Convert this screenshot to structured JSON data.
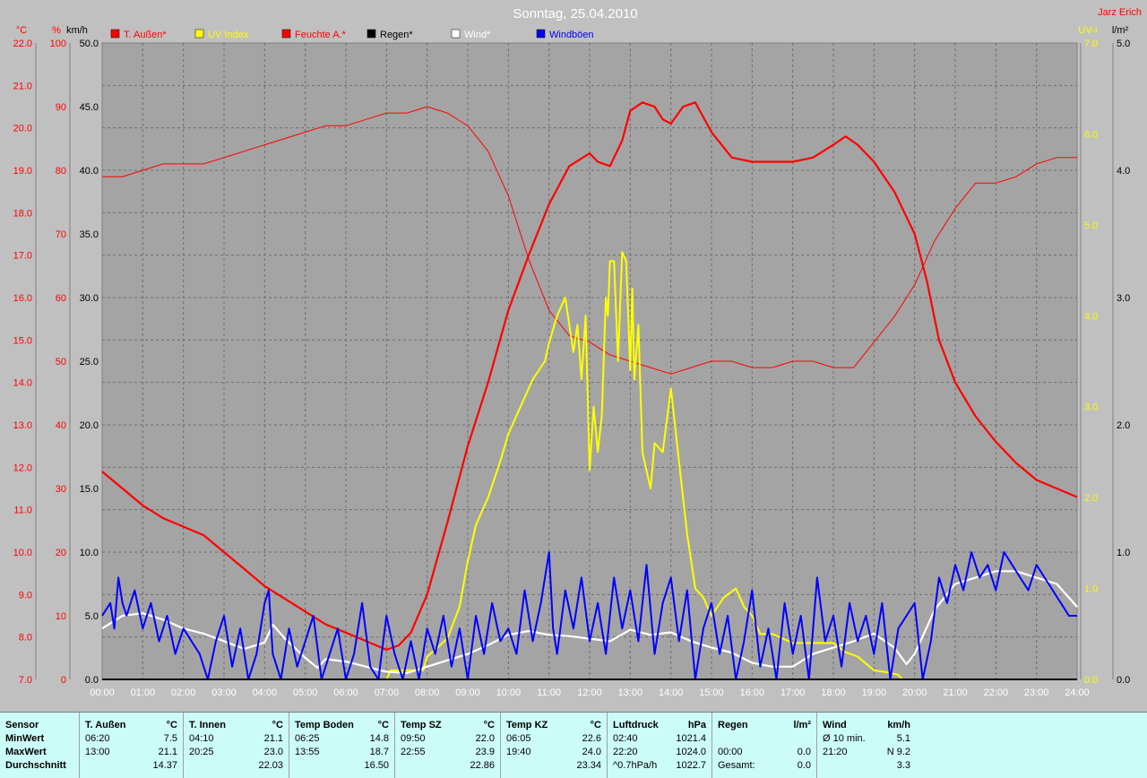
{
  "header": {
    "title": "Sonntag, 25.04.2010",
    "author": "Jarz Erich",
    "axis_units": {
      "temp": "°C",
      "humidity": "%",
      "wind": "km/h",
      "uv": "UV-I",
      "rain": "l/m²"
    }
  },
  "legend": [
    {
      "label": "T. Außen*",
      "color": "#ff0000"
    },
    {
      "label": "UV Index",
      "color": "#ffff00"
    },
    {
      "label": "Feuchte A.*",
      "color": "#ff0000"
    },
    {
      "label": "Regen*",
      "color": "#000000"
    },
    {
      "label": "Wind*",
      "color": "#ffffff"
    },
    {
      "label": "Windböen",
      "color": "#0000ff"
    }
  ],
  "chart_data": {
    "type": "line",
    "x_ticks": [
      "00:00",
      "01:00",
      "02:00",
      "03:00",
      "04:00",
      "05:00",
      "06:00",
      "07:00",
      "08:00",
      "09:00",
      "10:00",
      "11:00",
      "12:00",
      "13:00",
      "14:00",
      "15:00",
      "16:00",
      "17:00",
      "18:00",
      "19:00",
      "20:00",
      "21:00",
      "22:00",
      "23:00",
      "24:00"
    ],
    "axes": {
      "temp": {
        "range": [
          7,
          22
        ],
        "ticks": [
          "7.0",
          "8.0",
          "9.0",
          "10.0",
          "11.0",
          "12.0",
          "13.0",
          "14.0",
          "15.0",
          "16.0",
          "17.0",
          "18.0",
          "19.0",
          "20.0",
          "21.0",
          "22.0"
        ]
      },
      "humidity": {
        "range": [
          0,
          100
        ],
        "ticks": [
          "0",
          "10",
          "20",
          "30",
          "40",
          "50",
          "60",
          "70",
          "80",
          "90",
          "100"
        ]
      },
      "wind": {
        "range": [
          0,
          50
        ],
        "ticks": [
          "0.0",
          "5.0",
          "10.0",
          "15.0",
          "20.0",
          "25.0",
          "30.0",
          "35.0",
          "40.0",
          "45.0",
          "50.0"
        ]
      },
      "uv": {
        "range": [
          0,
          7
        ],
        "ticks": [
          "0.0",
          "1.0",
          "2.0",
          "3.0",
          "4.0",
          "5.0",
          "6.0",
          "7.0"
        ]
      },
      "rain": {
        "range": [
          0,
          5
        ],
        "ticks": [
          "0.0",
          "1.0",
          "2.0",
          "3.0",
          "4.0",
          "5.0"
        ]
      }
    },
    "series": [
      {
        "name": "T. Außen*",
        "axis": "temp",
        "color": "#ff0000",
        "width": 2.2,
        "x": [
          0,
          0.5,
          1,
          1.5,
          2,
          2.5,
          3,
          3.5,
          4,
          4.5,
          5,
          5.5,
          6,
          6.5,
          7,
          7.3,
          7.6,
          8,
          8.5,
          9,
          9.5,
          10,
          10.5,
          11,
          11.5,
          12,
          12.2,
          12.5,
          12.8,
          13,
          13.3,
          13.6,
          13.8,
          14,
          14.3,
          14.6,
          15,
          15.5,
          16,
          16.5,
          17,
          17.5,
          18,
          18.3,
          18.6,
          19,
          19.5,
          20,
          20.3,
          20.6,
          21,
          21.5,
          22,
          22.5,
          23,
          23.5,
          24
        ],
        "y": [
          11.9,
          11.5,
          11.1,
          10.8,
          10.6,
          10.4,
          10.0,
          9.6,
          9.2,
          8.9,
          8.6,
          8.3,
          8.1,
          7.9,
          7.7,
          7.8,
          8.1,
          9.0,
          10.7,
          12.5,
          14.0,
          15.7,
          17.0,
          18.2,
          19.1,
          19.4,
          19.2,
          19.1,
          19.7,
          20.4,
          20.6,
          20.5,
          20.2,
          20.1,
          20.5,
          20.6,
          19.9,
          19.3,
          19.2,
          19.2,
          19.2,
          19.3,
          19.6,
          19.8,
          19.6,
          19.2,
          18.5,
          17.5,
          16.4,
          15.0,
          14.0,
          13.2,
          12.6,
          12.1,
          11.7,
          11.5,
          11.3
        ]
      },
      {
        "name": "Feuchte A.*",
        "axis": "humidity",
        "color": "#ff0000",
        "width": 1,
        "x": [
          0,
          0.5,
          1,
          1.5,
          2,
          2.5,
          3,
          3.5,
          4,
          4.5,
          5,
          5.5,
          6,
          6.5,
          7,
          7.5,
          8,
          8.5,
          9,
          9.5,
          10,
          10.5,
          11,
          11.5,
          12,
          12.5,
          13,
          13.5,
          14,
          14.5,
          15,
          15.5,
          16,
          16.5,
          17,
          17.5,
          18,
          18.5,
          19,
          19.5,
          20,
          20.5,
          21,
          21.5,
          22,
          22.5,
          23,
          23.5,
          24
        ],
        "y": [
          79,
          79,
          80,
          81,
          81,
          81,
          82,
          83,
          84,
          85,
          86,
          87,
          87,
          88,
          89,
          89,
          90,
          89,
          87,
          83,
          76,
          66,
          58,
          54,
          53,
          51,
          50,
          49,
          48,
          49,
          50,
          50,
          49,
          49,
          50,
          50,
          49,
          49,
          53,
          57,
          62,
          69,
          74,
          78,
          78,
          79,
          81,
          82,
          82
        ]
      },
      {
        "name": "UV Index",
        "axis": "uv",
        "color": "#ffff00",
        "width": 2,
        "x": [
          0,
          7,
          7.1,
          7.5,
          7.9,
          8,
          8.5,
          8.8,
          9,
          9.2,
          9.5,
          9.8,
          10,
          10.3,
          10.6,
          10.9,
          11,
          11.2,
          11.4,
          11.6,
          11.7,
          11.8,
          11.9,
          12.0,
          12.1,
          12.2,
          12.3,
          12.4,
          12.45,
          12.5,
          12.6,
          12.7,
          12.8,
          12.9,
          13.0,
          13.05,
          13.1,
          13.2,
          13.3,
          13.5,
          13.6,
          13.8,
          14.0,
          14.2,
          14.4,
          14.6,
          14.8,
          15.0,
          15.3,
          15.6,
          15.8,
          16.0,
          16.2,
          16.5,
          17.0,
          17.5,
          18.0,
          18.3,
          18.6,
          19.0,
          19.3,
          19.5,
          19.6,
          19.7,
          24
        ],
        "y": [
          0.0,
          0.0,
          0.1,
          0.1,
          0.1,
          0.25,
          0.45,
          0.8,
          1.3,
          1.7,
          2.0,
          2.4,
          2.7,
          3.0,
          3.3,
          3.5,
          3.7,
          4.0,
          4.2,
          3.6,
          3.9,
          3.3,
          4.0,
          2.3,
          3.0,
          2.5,
          2.9,
          4.2,
          4.0,
          4.6,
          4.6,
          3.5,
          4.7,
          4.6,
          3.4,
          4.3,
          3.3,
          3.9,
          2.5,
          2.1,
          2.6,
          2.5,
          3.2,
          2.4,
          1.6,
          1.0,
          0.9,
          0.7,
          0.9,
          1.0,
          0.8,
          0.7,
          0.5,
          0.5,
          0.4,
          0.4,
          0.4,
          0.3,
          0.25,
          0.1,
          0.08,
          0.06,
          0.05,
          0.0,
          0.0
        ]
      },
      {
        "name": "Wind*",
        "axis": "wind",
        "color": "#ffffff",
        "width": 2.2,
        "x": [
          0,
          0.5,
          1,
          1.5,
          2,
          2.5,
          3,
          3.5,
          4,
          4.2,
          4.5,
          5,
          5.3,
          5.5,
          6,
          6.5,
          7,
          7.5,
          8,
          8.5,
          9,
          9.5,
          10,
          10.5,
          11,
          11.5,
          12,
          12.5,
          13,
          13.5,
          14,
          14.5,
          15,
          15.5,
          16,
          16.5,
          17,
          17.5,
          18,
          18.5,
          19,
          19.5,
          19.8,
          20,
          20.5,
          21,
          21.5,
          22,
          22.5,
          23,
          23.5,
          24
        ],
        "y": [
          4.0,
          5.0,
          5.2,
          4.7,
          4.0,
          3.6,
          3.0,
          2.4,
          2.9,
          4.3,
          3.2,
          1.7,
          0.9,
          1.6,
          1.4,
          1.0,
          0.6,
          0.5,
          1.0,
          1.5,
          2.0,
          2.7,
          3.5,
          3.8,
          3.5,
          3.4,
          3.2,
          3.0,
          3.9,
          3.5,
          3.7,
          3.0,
          2.5,
          2.1,
          1.3,
          1.0,
          1.0,
          2.0,
          2.5,
          3.0,
          3.6,
          2.5,
          1.2,
          2.0,
          5.5,
          7.5,
          8.0,
          8.5,
          8.5,
          8.0,
          7.5,
          5.7
        ]
      },
      {
        "name": "Windböen",
        "axis": "wind",
        "color": "#0000ff",
        "width": 2,
        "x": [
          0,
          0.2,
          0.3,
          0.4,
          0.5,
          0.6,
          0.8,
          1,
          1.2,
          1.4,
          1.6,
          1.8,
          2,
          2.2,
          2.4,
          2.6,
          2.8,
          3,
          3.2,
          3.4,
          3.6,
          3.8,
          4,
          4.1,
          4.2,
          4.4,
          4.6,
          4.8,
          5,
          5.2,
          5.4,
          5.6,
          5.8,
          6,
          6.2,
          6.4,
          6.6,
          6.8,
          7,
          7.2,
          7.4,
          7.6,
          7.8,
          8,
          8.2,
          8.4,
          8.6,
          8.8,
          9,
          9.2,
          9.4,
          9.6,
          9.8,
          10,
          10.2,
          10.4,
          10.6,
          10.8,
          11,
          11.1,
          11.2,
          11.4,
          11.6,
          11.8,
          12,
          12.2,
          12.4,
          12.6,
          12.8,
          13,
          13.2,
          13.4,
          13.6,
          13.8,
          14,
          14.2,
          14.4,
          14.6,
          14.8,
          15,
          15.2,
          15.4,
          15.6,
          15.8,
          16,
          16.2,
          16.4,
          16.6,
          16.8,
          17,
          17.2,
          17.4,
          17.6,
          17.8,
          18,
          18.2,
          18.4,
          18.6,
          18.8,
          19,
          19.2,
          19.4,
          19.6,
          19.8,
          20,
          20.2,
          20.4,
          20.6,
          20.8,
          21,
          21.2,
          21.4,
          21.6,
          21.8,
          22,
          22.2,
          22.4,
          22.6,
          22.8,
          23,
          23.2,
          23.4,
          23.6,
          23.8,
          24
        ],
        "y": [
          5,
          6,
          4,
          8,
          6,
          5,
          7,
          4,
          6,
          3,
          5,
          2,
          4,
          3,
          2,
          0,
          3,
          5,
          1,
          4,
          0,
          2,
          6,
          7,
          2,
          0,
          4,
          1,
          3,
          5,
          0,
          2,
          4,
          0,
          2,
          6,
          1,
          0,
          5,
          2,
          0,
          3,
          0,
          4,
          2,
          5,
          1,
          4,
          0,
          5,
          2,
          6,
          3,
          4,
          2,
          7,
          3,
          6,
          10,
          4,
          2,
          7,
          4,
          8,
          3,
          6,
          2,
          8,
          4,
          7,
          3,
          9,
          2,
          6,
          8,
          3,
          7,
          0,
          4,
          6,
          2,
          5,
          0,
          3,
          7,
          1,
          4,
          0,
          6,
          2,
          5,
          0,
          8,
          3,
          5,
          1,
          6,
          3,
          5,
          2,
          6,
          0,
          4,
          5,
          6,
          0,
          3,
          8,
          6,
          9,
          7,
          10,
          8,
          9,
          7,
          10,
          9,
          8,
          7,
          9,
          8,
          7,
          6,
          5,
          5
        ]
      },
      {
        "name": "Regen*",
        "axis": "rain",
        "color": "#000000",
        "width": 2,
        "x": [
          0,
          24
        ],
        "y": [
          0,
          0
        ]
      }
    ]
  },
  "summary": {
    "columns": [
      {
        "header": "Sensor",
        "unit": "",
        "rows": [
          [
            "MinWert",
            ""
          ],
          [
            "MaxWert",
            ""
          ],
          [
            "Durchschnitt",
            ""
          ]
        ],
        "bold_rows": true
      },
      {
        "header": "T. Außen",
        "unit": "°C",
        "rows": [
          [
            "06:20",
            "7.5"
          ],
          [
            "13:00",
            "21.1"
          ],
          [
            "",
            "14.37"
          ]
        ]
      },
      {
        "header": "T. Innen",
        "unit": "°C",
        "rows": [
          [
            "04:10",
            "21.1"
          ],
          [
            "20:25",
            "23.0"
          ],
          [
            "",
            "22.03"
          ]
        ]
      },
      {
        "header": "Temp Boden",
        "unit": "°C",
        "rows": [
          [
            "06:25",
            "14.8"
          ],
          [
            "13:55",
            "18.7"
          ],
          [
            "",
            "16.50"
          ]
        ]
      },
      {
        "header": "Temp SZ",
        "unit": "°C",
        "rows": [
          [
            "09:50",
            "22.0"
          ],
          [
            "22:55",
            "23.9"
          ],
          [
            "",
            "22.86"
          ]
        ]
      },
      {
        "header": "Temp KZ",
        "unit": "°C",
        "rows": [
          [
            "06:05",
            "22.6"
          ],
          [
            "19:40",
            "24.0"
          ],
          [
            "",
            "23.34"
          ]
        ]
      },
      {
        "header": "Luftdruck",
        "unit": "hPa",
        "rows": [
          [
            "02:40",
            "1021.4"
          ],
          [
            "22:20",
            "1024.0"
          ],
          [
            "^0.7hPa/h",
            "1022.7"
          ]
        ]
      },
      {
        "header": "Regen",
        "unit": "l/m²",
        "rows": [
          [
            "",
            ""
          ],
          [
            "00:00",
            "0.0"
          ],
          [
            "Gesamt:",
            "0.0"
          ]
        ]
      },
      {
        "header": "Wind",
        "unit": "km/h",
        "rows": [
          [
            "Ø 10 min.",
            "5.1"
          ],
          [
            "21:20",
            "N 9.2"
          ],
          [
            "",
            "3.3"
          ]
        ]
      }
    ]
  }
}
